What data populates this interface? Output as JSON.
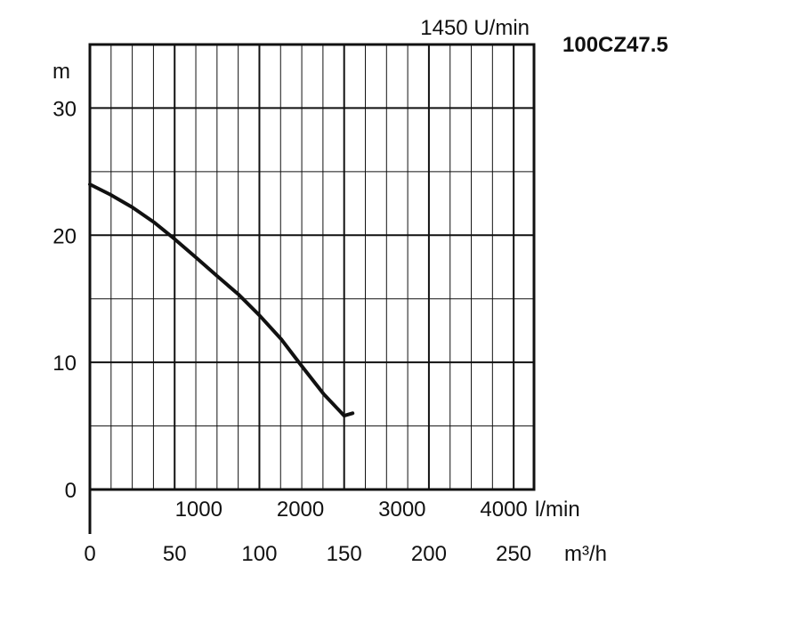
{
  "chart_data": {
    "type": "line",
    "title": "1450 U/min",
    "model": "100CZ47.5",
    "ylabel": "m",
    "ylim": [
      0,
      35
    ],
    "y_ticks": [
      0,
      10,
      20,
      30
    ],
    "y_tick_labels": [
      "0",
      "10",
      "20",
      "30"
    ],
    "x_unit_primary": "m³/h",
    "xlim": [
      0,
      262
    ],
    "x_ticks": [
      0,
      50,
      100,
      150,
      200,
      250
    ],
    "x_tick_labels": [
      "0",
      "50",
      "100",
      "150",
      "200",
      "250"
    ],
    "x_unit_secondary": "l/min",
    "x2_ticks": [
      1000,
      2000,
      3000,
      4000
    ],
    "x2_tick_labels": [
      "1000",
      "2000",
      "3000",
      "4000"
    ],
    "grid": true,
    "series": [
      {
        "x": [
          0,
          12,
          25,
          38,
          50,
          63,
          75,
          88,
          100,
          113,
          125,
          138,
          150,
          155
        ],
        "y": [
          24,
          23.2,
          22.2,
          21,
          19.7,
          18.2,
          16.8,
          15.3,
          13.7,
          11.8,
          9.7,
          7.5,
          5.8,
          6
        ]
      }
    ]
  }
}
